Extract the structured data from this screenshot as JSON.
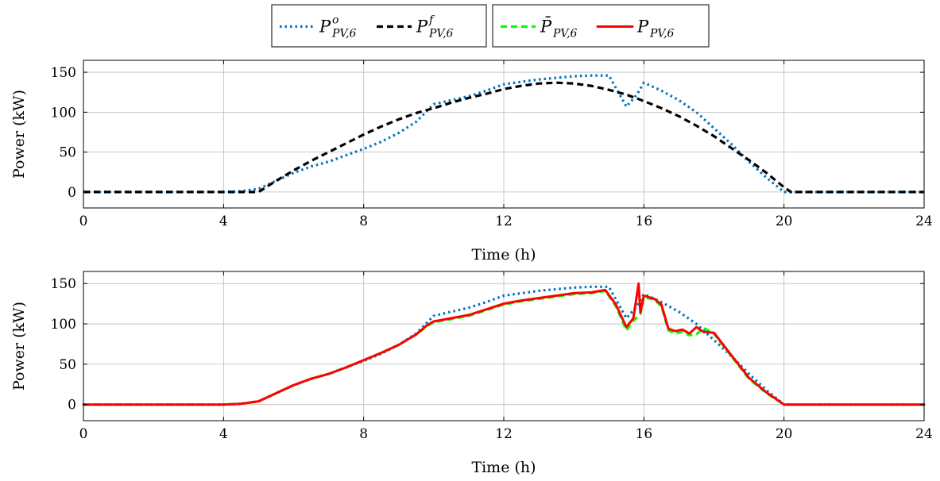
{
  "legend_groups": [
    {
      "entries": [
        {
          "symbol": "P",
          "sup": "o",
          "sub": "PV,6",
          "series": "P_o"
        },
        {
          "symbol": "P",
          "sup": "f",
          "sub": "PV,6",
          "series": "P_f"
        }
      ]
    },
    {
      "entries": [
        {
          "symbol": "P̄",
          "sup": "",
          "sub": "PV,6",
          "series": "P_bar"
        },
        {
          "symbol": "P",
          "sup": "",
          "sub": "PV,6",
          "series": "P"
        }
      ]
    }
  ],
  "styles": {
    "P_o": {
      "color": "#0072bd",
      "dash": "dotted"
    },
    "P_f": {
      "color": "#000000",
      "dash": "dashed"
    },
    "P_bar": {
      "color": "#00ff00",
      "dash": "dashed"
    },
    "P": {
      "color": "#ff0000",
      "dash": "solid"
    }
  },
  "chart_data": [
    {
      "type": "line",
      "xlabel": "Time (h)",
      "ylabel": "Power (kW)",
      "xlim": [
        0,
        24
      ],
      "ylim": [
        -20,
        165
      ],
      "xticks": [
        0,
        4,
        8,
        12,
        16,
        20,
        24
      ],
      "yticks": [
        0,
        50,
        100,
        150
      ],
      "grid": true,
      "series": [
        {
          "key": "P_o",
          "x": [
            0,
            1,
            2,
            3,
            4,
            4.5,
            5,
            5.5,
            6,
            6.5,
            7,
            7.5,
            8,
            8.5,
            9,
            9.5,
            10,
            10.5,
            11,
            11.5,
            12,
            12.5,
            13,
            13.5,
            14,
            14.5,
            15,
            15.5,
            15.8,
            16,
            16.5,
            17,
            17.5,
            18,
            18.5,
            19,
            19.5,
            20,
            21,
            22,
            23,
            24
          ],
          "y": [
            0,
            0,
            0,
            0,
            0,
            1,
            4,
            14,
            24,
            32,
            38,
            46,
            54,
            63,
            74,
            88,
            110,
            115,
            120,
            127,
            135,
            138,
            141,
            143,
            145,
            146,
            146,
            107,
            122,
            137,
            127,
            115,
            100,
            80,
            60,
            38,
            18,
            0,
            0,
            0,
            0,
            0
          ]
        },
        {
          "key": "P_f",
          "x": [
            0,
            1,
            2,
            3,
            4,
            5,
            5.5,
            6,
            6.5,
            7,
            7.5,
            8,
            8.5,
            9,
            9.5,
            10,
            10.5,
            11,
            11.5,
            12,
            12.5,
            13,
            13.5,
            14,
            14.5,
            15,
            15.5,
            16,
            16.5,
            17,
            17.5,
            18,
            18.5,
            19,
            19.5,
            20,
            20.2,
            21,
            22,
            23,
            24
          ],
          "y": [
            0,
            0,
            0,
            0,
            0,
            0,
            14,
            27,
            39,
            50,
            61,
            72,
            82,
            91,
            99,
            105,
            112,
            118,
            123,
            129,
            133,
            136,
            137,
            136,
            133,
            128,
            122,
            114,
            105,
            95,
            83,
            70,
            55,
            40,
            24,
            6,
            0,
            0,
            0,
            0,
            0
          ]
        }
      ]
    },
    {
      "type": "line",
      "xlabel": "Time (h)",
      "ylabel": "Power (kW)",
      "xlim": [
        0,
        24
      ],
      "ylim": [
        -20,
        165
      ],
      "xticks": [
        0,
        4,
        8,
        12,
        16,
        20,
        24
      ],
      "yticks": [
        0,
        50,
        100,
        150
      ],
      "grid": true,
      "series": [
        {
          "key": "P_o",
          "x": [
            0,
            1,
            2,
            3,
            4,
            4.5,
            5,
            5.5,
            6,
            6.5,
            7,
            7.5,
            8,
            8.5,
            9,
            9.5,
            10,
            10.5,
            11,
            11.5,
            12,
            12.5,
            13,
            13.5,
            14,
            14.5,
            15,
            15.5,
            15.8,
            16,
            16.5,
            17,
            17.5,
            18,
            18.5,
            19,
            19.5,
            20,
            21,
            22,
            23,
            24
          ],
          "y": [
            0,
            0,
            0,
            0,
            0,
            1,
            4,
            14,
            24,
            32,
            38,
            46,
            54,
            63,
            74,
            88,
            110,
            115,
            120,
            127,
            135,
            138,
            141,
            143,
            145,
            146,
            146,
            107,
            122,
            137,
            127,
            115,
            100,
            80,
            60,
            38,
            18,
            0,
            0,
            0,
            0,
            0
          ]
        },
        {
          "key": "P_bar",
          "x": [
            0,
            1,
            2,
            3,
            4,
            4.5,
            5,
            5.5,
            6,
            6.5,
            7,
            7.5,
            8,
            8.5,
            9,
            9.5,
            9.8,
            10,
            10.5,
            11,
            11.5,
            12,
            12.5,
            13,
            13.5,
            14,
            14.5,
            14.9,
            15.2,
            15.5,
            15.7,
            15.9,
            16,
            16.3,
            16.5,
            16.7,
            16.9,
            17.1,
            17.3,
            17.5,
            17.7,
            18,
            18.5,
            19,
            19.5,
            20,
            21,
            22,
            23,
            24
          ],
          "y": [
            0,
            0,
            0,
            0,
            0,
            1,
            4,
            14,
            24,
            32,
            38,
            46,
            55,
            64,
            74,
            87,
            97,
            102,
            106,
            110,
            117,
            124,
            128,
            131,
            134,
            137,
            138,
            141,
            122,
            92,
            104,
            112,
            133,
            130,
            122,
            92,
            88,
            90,
            86,
            87,
            95,
            88,
            60,
            32,
            14,
            0,
            0,
            0,
            0,
            0
          ]
        },
        {
          "key": "P",
          "x": [
            0,
            1,
            2,
            3,
            4,
            4.5,
            5,
            5.5,
            6,
            6.5,
            7,
            7.5,
            8,
            8.5,
            9,
            9.5,
            9.8,
            10,
            10.5,
            11,
            11.5,
            12,
            12.5,
            13,
            13.5,
            14,
            14.5,
            14.9,
            15.2,
            15.5,
            15.7,
            15.85,
            15.9,
            16,
            16.3,
            16.5,
            16.7,
            16.9,
            17.1,
            17.3,
            17.5,
            17.7,
            18,
            18.5,
            19,
            19.5,
            20,
            21,
            22,
            23,
            24
          ],
          "y": [
            0,
            0,
            0,
            0,
            0,
            1,
            4,
            14,
            24,
            32,
            38,
            46,
            55,
            64,
            74,
            87,
            98,
            103,
            107,
            111,
            118,
            125,
            129,
            132,
            135,
            138,
            139,
            142,
            124,
            96,
            107,
            150,
            114,
            135,
            131,
            124,
            94,
            91,
            93,
            88,
            96,
            90,
            89,
            61,
            33,
            15,
            0,
            0,
            0,
            0,
            0
          ]
        }
      ]
    }
  ]
}
